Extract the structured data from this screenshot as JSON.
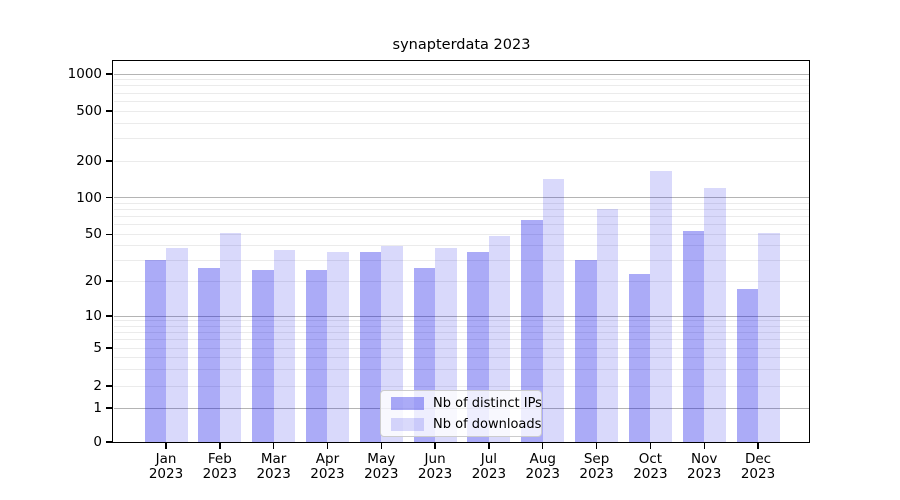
{
  "title": "synapterdata 2023",
  "chart_data": {
    "type": "bar",
    "title": "synapterdata 2023",
    "categories": [
      "Jan 2023",
      "Feb 2023",
      "Mar 2023",
      "Apr 2023",
      "May 2023",
      "Jun 2023",
      "Jul 2023",
      "Aug 2023",
      "Sep 2023",
      "Oct 2023",
      "Nov 2023",
      "Dec 2023"
    ],
    "months": [
      "Jan",
      "Feb",
      "Mar",
      "Apr",
      "May",
      "Jun",
      "Jul",
      "Aug",
      "Sep",
      "Oct",
      "Nov",
      "Dec"
    ],
    "year_label": "2023",
    "series": [
      {
        "name": "Nb of distinct IPs",
        "color_hex": "#aeaef6",
        "color_rgba": "rgba(0,0,230,0.33)",
        "values": [
          30,
          26,
          25,
          25,
          35,
          26,
          35,
          65,
          30,
          23,
          53,
          17
        ]
      },
      {
        "name": "Nb of downloads",
        "color_hex": "#dadaf8",
        "color_rgba": "rgba(0,0,230,0.15)",
        "values": [
          38,
          51,
          37,
          35,
          40,
          38,
          48,
          142,
          81,
          166,
          119,
          51
        ]
      }
    ],
    "y_ticks": [
      0,
      1,
      2,
      5,
      10,
      20,
      50,
      100,
      200,
      500,
      1000
    ],
    "y_major_gridlines": [
      1,
      10,
      100,
      1000
    ],
    "y_scale": "log-like (compressed below 10, 0 at baseline)",
    "ylim": [
      0,
      1300
    ],
    "xlabel": "",
    "ylabel": "",
    "grid": true,
    "legend_position": "lower center"
  }
}
